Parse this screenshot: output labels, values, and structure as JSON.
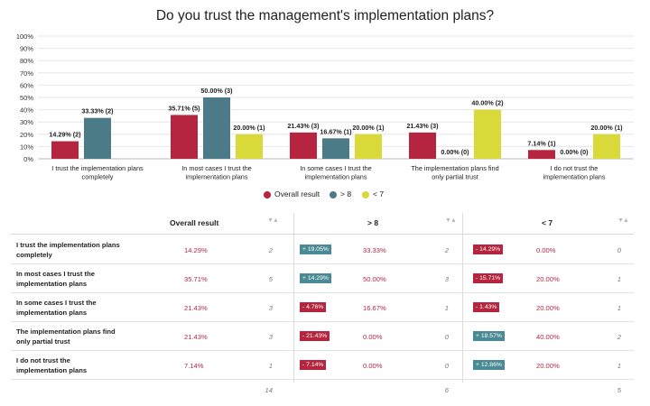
{
  "chart_data": {
    "type": "bar",
    "title": "Do you trust the management's implementation plans?",
    "categories": [
      [
        "I trust the implementation plans",
        "completely"
      ],
      [
        "In most cases I trust the",
        "implementation plans"
      ],
      [
        "In some cases I trust the",
        "implementation plans"
      ],
      [
        "The implementation plans find",
        "only partial trust"
      ],
      [
        "I do not trust the",
        "implementation plans"
      ]
    ],
    "ylim": [
      0,
      100
    ],
    "yticks": [
      "0%",
      "10%",
      "20%",
      "30%",
      "40%",
      "50%",
      "60%",
      "70%",
      "80%",
      "90%",
      "100%"
    ],
    "grid": true,
    "legend_position": "bottom",
    "series": [
      {
        "name": "Overall result",
        "color": "#b5253f",
        "values": [
          14.29,
          35.71,
          21.43,
          21.43,
          7.14
        ],
        "labels": [
          "14.29% (2)",
          "35.71% (5)",
          "21.43% (3)",
          "21.43% (3)",
          "7.14% (1)"
        ]
      },
      {
        "name": "> 8",
        "color": "#4a7b86",
        "values": [
          33.33,
          50.0,
          16.67,
          0.0,
          0.0
        ],
        "labels": [
          "33.33% (2)",
          "50.00% (3)",
          "16.67% (1)",
          "0.00% (0)",
          "0.00% (0)"
        ]
      },
      {
        "name": "< 7",
        "color": "#d9d93a",
        "values": [
          0.0,
          20.0,
          20.0,
          40.0,
          20.0
        ],
        "labels": [
          "",
          "20.00% (1)",
          "20.00% (1)",
          "40.00% (2)",
          "20.00% (1)"
        ]
      }
    ]
  },
  "table": {
    "headers": [
      "Overall result",
      "> 8",
      "< 7"
    ],
    "rows": [
      {
        "label": [
          "I trust the implementation plans",
          "completely"
        ],
        "overall": "14.29%",
        "overall_n": "2",
        "g8_diff": "+ 19.05%",
        "g8_dir": "pos",
        "g8": "33.33%",
        "g8_n": "2",
        "l7_diff": "- 14.29%",
        "l7_dir": "neg",
        "l7": "0.00%",
        "l7_n": "0"
      },
      {
        "label": [
          "In most cases I trust the",
          "implementation plans"
        ],
        "overall": "35.71%",
        "overall_n": "5",
        "g8_diff": "+ 14.29%",
        "g8_dir": "pos",
        "g8": "50.00%",
        "g8_n": "3",
        "l7_diff": "- 15.71%",
        "l7_dir": "neg",
        "l7": "20.00%",
        "l7_n": "1"
      },
      {
        "label": [
          "In some cases I trust the",
          "implementation plans"
        ],
        "overall": "21.43%",
        "overall_n": "3",
        "g8_diff": "- 4.76%",
        "g8_dir": "neg",
        "g8": "16.67%",
        "g8_n": "1",
        "l7_diff": "- 1.43%",
        "l7_dir": "neg",
        "l7": "20.00%",
        "l7_n": "1"
      },
      {
        "label": [
          "The implementation plans find",
          "only partial trust"
        ],
        "overall": "21.43%",
        "overall_n": "3",
        "g8_diff": "- 21.43%",
        "g8_dir": "neg",
        "g8": "0.00%",
        "g8_n": "0",
        "l7_diff": "+ 18.57%",
        "l7_dir": "pos",
        "l7": "40.00%",
        "l7_n": "2"
      },
      {
        "label": [
          "I do not trust the",
          "implementation plans"
        ],
        "overall": "7.14%",
        "overall_n": "1",
        "g8_diff": "- 7.14%",
        "g8_dir": "neg",
        "g8": "0.00%",
        "g8_n": "0",
        "l7_diff": "+ 12.86%",
        "l7_dir": "pos",
        "l7": "20.00%",
        "l7_n": "1"
      }
    ],
    "totals": [
      "14",
      "6",
      "5"
    ]
  }
}
